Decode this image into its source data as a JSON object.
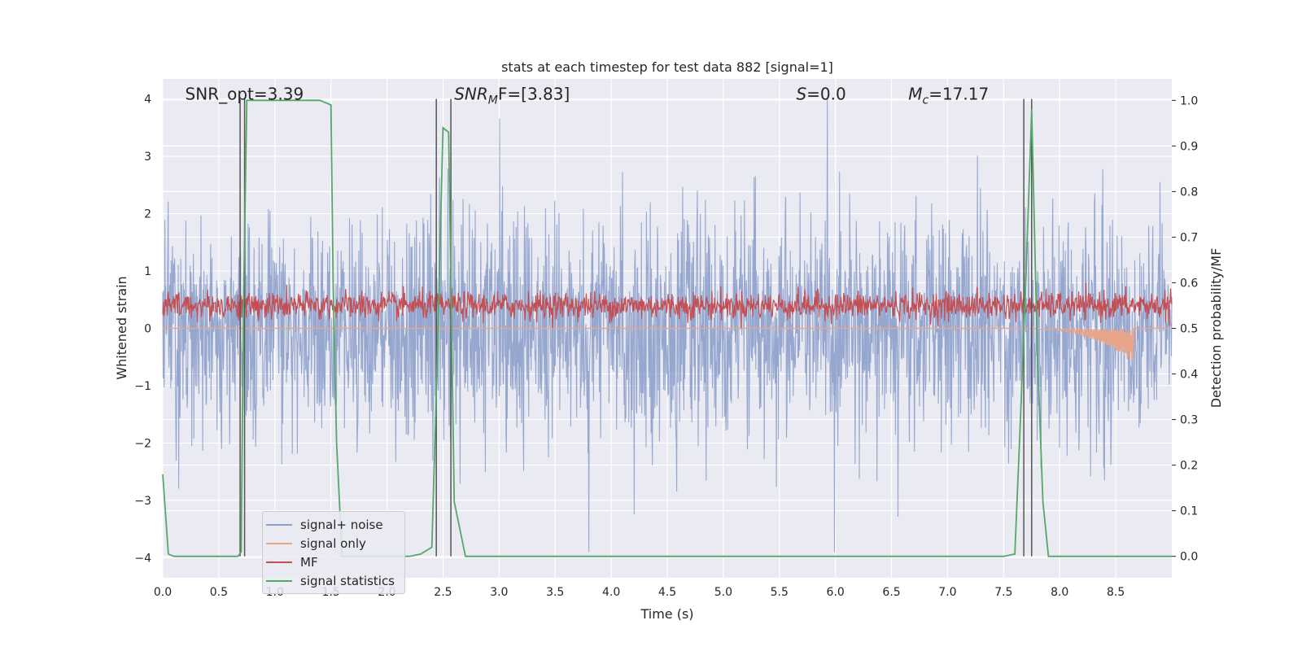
{
  "chart_data": {
    "type": "line",
    "title": "stats at each timestep for test data 882 [signal=1]",
    "xlabel": "Time (s)",
    "ylabel_left": "Whitened strain",
    "ylabel_right": "Detection probability/MF",
    "xlim": [
      0.0,
      9.0
    ],
    "ylim_left": [
      -4.35,
      4.35
    ],
    "ylim_right": [
      -0.047,
      1.047
    ],
    "x_ticks": [
      "0.0",
      "0.5",
      "1.0",
      "1.5",
      "2.0",
      "2.5",
      "3.0",
      "3.5",
      "4.0",
      "4.5",
      "5.0",
      "5.5",
      "6.0",
      "6.5",
      "7.0",
      "7.5",
      "8.0",
      "8.5"
    ],
    "y_ticks_left": [
      "−4",
      "−3",
      "−2",
      "−1",
      "0",
      "1",
      "2",
      "3",
      "4"
    ],
    "y_ticks_right": [
      "0.0",
      "0.1",
      "0.2",
      "0.3",
      "0.4",
      "0.5",
      "0.6",
      "0.7",
      "0.8",
      "0.9",
      "1.0"
    ],
    "grid": true,
    "legend_position": "lower-left",
    "annotations": [
      {
        "text": "SNR_opt=3.39",
        "x": 0.2,
        "y": 4.0
      },
      {
        "text": "SNR",
        "sub": "M",
        "rest": "F=[3.83]",
        "italic": true,
        "x": 2.6,
        "y": 4.0
      },
      {
        "text": "S",
        "rest": "=0.0",
        "italic": true,
        "x": 5.65,
        "y": 4.0
      },
      {
        "text": "M",
        "sub": "c",
        "rest": "=17.17",
        "italic": true,
        "x": 6.65,
        "y": 4.0
      }
    ],
    "vertical_lines_x": [
      0.69,
      0.73,
      2.44,
      2.57,
      7.68,
      7.75
    ],
    "series": [
      {
        "name": "signal+ noise",
        "color": "#8da0cb",
        "axis": "left",
        "kind": "noise",
        "band_mean": 0.0,
        "band_sd": 0.95,
        "peak_max": 4.0,
        "peak_min": -3.9
      },
      {
        "name": "signal only",
        "color": "#e8a58a",
        "axis": "left",
        "kind": "chirp",
        "x_start": 7.5,
        "x_end": 8.66,
        "y_end": -0.6
      },
      {
        "name": "MF",
        "color": "#c44e52",
        "axis": "right",
        "kind": "mf",
        "band_mean": 0.55,
        "band_sd": 0.015,
        "peak_max": 0.6
      },
      {
        "name": "signal statistics",
        "color": "#55a868",
        "axis": "right",
        "kind": "line",
        "x": [
          0.0,
          0.05,
          0.1,
          0.15,
          0.2,
          0.3,
          0.4,
          0.5,
          0.6,
          0.67,
          0.7,
          0.72,
          0.75,
          0.8,
          0.9,
          1.0,
          1.1,
          1.2,
          1.3,
          1.4,
          1.5,
          1.52,
          1.55,
          1.6,
          1.7,
          1.8,
          1.9,
          2.0,
          2.1,
          2.2,
          2.3,
          2.4,
          2.45,
          2.5,
          2.55,
          2.6,
          2.7,
          2.8,
          3.0,
          4.0,
          5.0,
          6.0,
          7.0,
          7.5,
          7.6,
          7.65,
          7.7,
          7.75,
          7.8,
          7.85,
          7.9,
          8.0,
          8.5,
          9.0
        ],
        "y": [
          0.18,
          0.005,
          0.0,
          0.0,
          0.0,
          0.0,
          0.0,
          0.0,
          0.0,
          0.0,
          0.01,
          0.55,
          1.0,
          1.0,
          1.0,
          1.0,
          1.0,
          1.0,
          1.0,
          1.0,
          0.99,
          0.6,
          0.25,
          0.0,
          0.0,
          0.0,
          0.0,
          0.0,
          0.0,
          0.0,
          0.005,
          0.02,
          0.45,
          0.94,
          0.93,
          0.12,
          0.0,
          0.0,
          0.0,
          0.0,
          0.0,
          0.0,
          0.0,
          0.0,
          0.005,
          0.3,
          0.62,
          0.98,
          0.45,
          0.12,
          0.0,
          0.0,
          0.0,
          0.0
        ]
      }
    ]
  }
}
